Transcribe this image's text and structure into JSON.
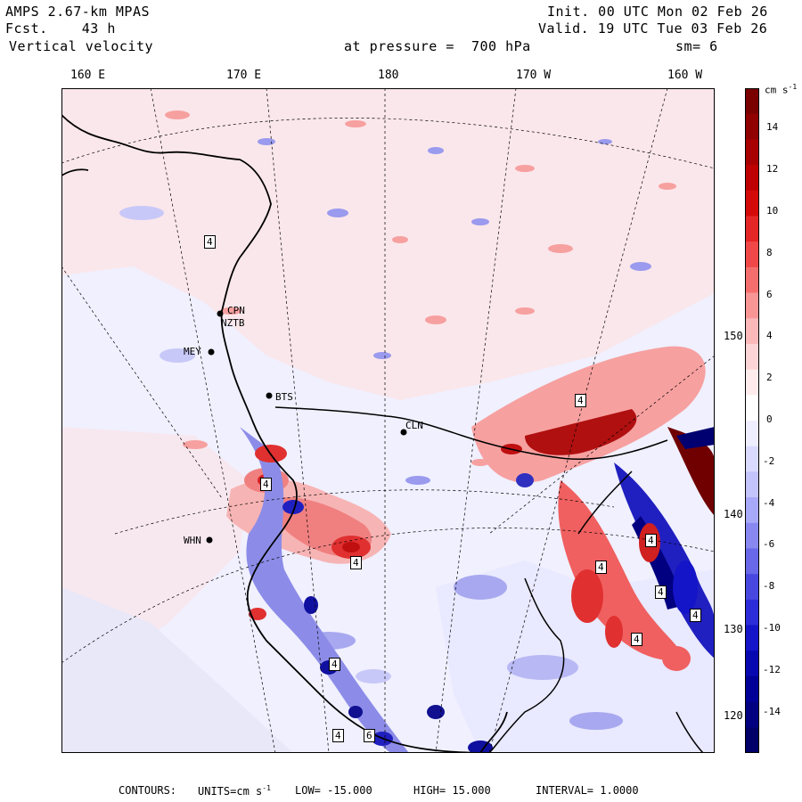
{
  "header": {
    "model": "AMPS 2.67-km MPAS",
    "fcst_label": "Fcst.",
    "fcst_value": "43 h",
    "variable": "Vertical velocity",
    "init": "Init. 00 UTC Mon 02 Feb 26",
    "valid": "Valid. 19 UTC Tue 03 Feb 26",
    "pressure_label": "at pressure =",
    "pressure_value": "700 hPa",
    "smoothing": "sm= 6"
  },
  "longitude_labels": [
    "160 E",
    "170 E",
    "180",
    "170 W",
    "160 W"
  ],
  "latitude_labels": [
    "150 W",
    "140 W",
    "130 W",
    "120 W"
  ],
  "stations": [
    "CPN",
    "NZTB",
    "MEY",
    "BTS",
    "CLN",
    "WHN"
  ],
  "extreme_labels": [
    "4",
    "4",
    "4",
    "4",
    "4",
    "4",
    "4",
    "4",
    "4",
    "4",
    "4",
    "6"
  ],
  "colorbar": {
    "units": "cm s",
    "units_exp": "-1",
    "ticks": [
      "14",
      "12",
      "10",
      "8",
      "6",
      "4",
      "2",
      "0",
      "-2",
      "-4",
      "-6",
      "-8",
      "-10",
      "-12",
      "-14"
    ],
    "colors": [
      "#7a0000",
      "#900000",
      "#a80000",
      "#bf0000",
      "#d40a0a",
      "#e52626",
      "#f04848",
      "#f56e6e",
      "#f89696",
      "#fab8b8",
      "#fcd6d6",
      "#feecec",
      "#ffffff",
      "#eeeeff",
      "#dadaff",
      "#c4c4fc",
      "#a8a8f8",
      "#8888f0",
      "#6868e8",
      "#4848e0",
      "#2c2cd8",
      "#1414c8",
      "#0808b0",
      "#000098",
      "#000080",
      "#000068"
    ]
  },
  "footer": {
    "contours": "CONTOURS:",
    "units": "UNITS=cm s",
    "units_exp": "-1",
    "low": "LOW= -15.000",
    "high": "HIGH= 15.000",
    "interval": "INTERVAL= 1.0000"
  }
}
